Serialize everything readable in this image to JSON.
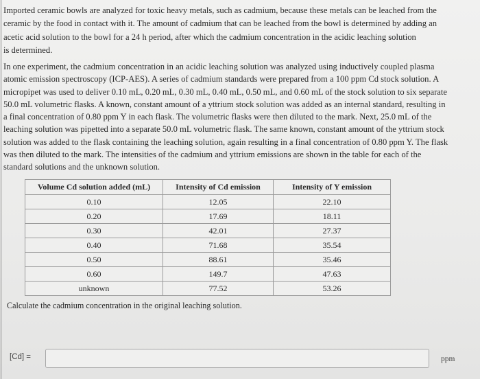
{
  "intro_lines": [
    "Imported ceramic bowls are analyzed for toxic heavy metals, such as cadmium, because these metals can be leached from the",
    "ceramic by the food in contact with it. The amount of cadmium that can be leached from the bowl is determined by adding an",
    "acetic acid solution to the bowl for a 24 h period, after which the cadmium concentration in the acidic leaching solution",
    "is determined."
  ],
  "experiment_lines": [
    "In one experiment, the cadmium concentration in an acidic leaching solution was analyzed using inductively coupled plasma",
    "atomic emission spectroscopy (ICP-AES). A series of cadmium standards were prepared from a 100 ppm Cd stock solution. A",
    "micropipet was used to deliver 0.10 mL, 0.20 mL, 0.30 mL, 0.40 mL, 0.50 mL, and 0.60 mL of the stock solution to six separate",
    "50.0 mL volumetric flasks. A known, constant amount of a yttrium stock solution was added as an internal standard, resulting in",
    "a final concentration of 0.80 ppm Y in each flask. The volumetric flasks were then diluted to the mark. Next, 25.0 mL of the",
    "leaching solution was pipetted into a separate 50.0 mL volumetric flask. The same known, constant amount of the yttrium stock",
    "solution was added to the flask containing the leaching solution, again resulting in a final concentration of 0.80 ppm Y. The flask",
    "was then diluted to the mark. The intensities of the cadmium and yttrium emissions are shown in the table for each of the",
    "standard solutions and the unknown  solution."
  ],
  "table": {
    "headers": [
      "Volume Cd solution added (mL)",
      "Intensity of Cd emission",
      "Intensity of Y emission"
    ],
    "rows": [
      [
        "0.10",
        "12.05",
        "22.10"
      ],
      [
        "0.20",
        "17.69",
        "18.11"
      ],
      [
        "0.30",
        "42.01",
        "27.37"
      ],
      [
        "0.40",
        "71.68",
        "35.54"
      ],
      [
        "0.50",
        "88.61",
        "35.46"
      ],
      [
        "0.60",
        "149.7",
        "47.63"
      ],
      [
        "unknown",
        "77.52",
        "53.26"
      ]
    ]
  },
  "question": "Calculate the cadmium concentration in the original leaching solution.",
  "answer": {
    "label": "[Cd] =",
    "value": "",
    "unit": "ppm"
  }
}
